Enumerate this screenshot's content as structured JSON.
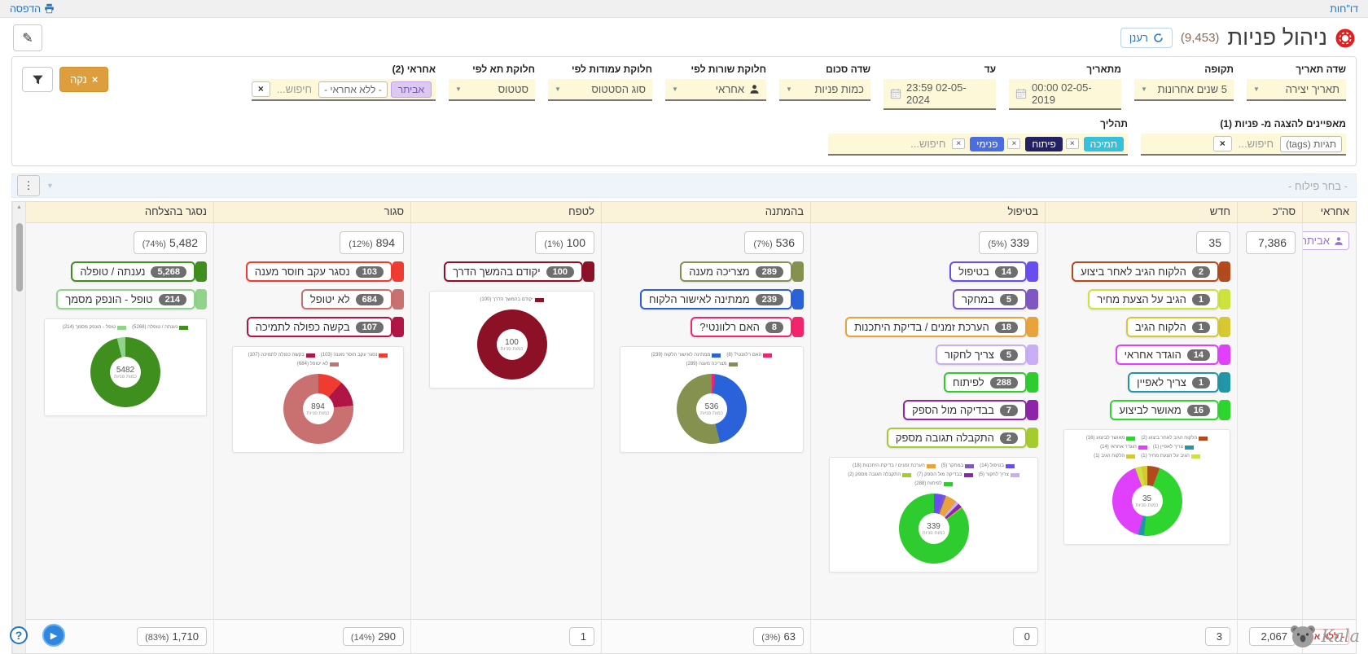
{
  "topbar": {
    "reports": "דו\"חות",
    "print": "הדפסה"
  },
  "header": {
    "title": "ניהול פניות",
    "count": "(9,453)",
    "refresh": "רענן"
  },
  "icons": {
    "caret": "▼",
    "kebab": "⋮",
    "scroll_up": "▲",
    "close": "×",
    "help": "?",
    "play": "▶"
  },
  "filters": {
    "clear": "נקה",
    "row1": [
      {
        "label": "שדה תאריך",
        "value": "תאריך יצירה"
      },
      {
        "label": "תקופה",
        "value": "5 שנים אחרונות"
      },
      {
        "label": "מתאריך",
        "value": "00:00 02-05-2019"
      },
      {
        "label": "עד",
        "value": "23:59 02-05-2024"
      },
      {
        "label": "שדה סכום",
        "value": "כמות פניות"
      },
      {
        "label": "חלוקת שורות לפי",
        "value": "אחראי"
      },
      {
        "label": "חלוקת עמודות לפי",
        "value": "סוג הסטטוס"
      },
      {
        "label": "חלוקת תא לפי",
        "value": "סטטוס"
      }
    ],
    "assignee2": {
      "label": "אחראי (2)",
      "tag_purple": "אביתר",
      "tag_plain": "- ללא אחראי -",
      "placeholder": "חיפוש..."
    },
    "attributes": {
      "label": "מאפיינים להצגה מ- פניות (1)",
      "tag": "תגיות (tags)",
      "placeholder": "חיפוש..."
    },
    "process": {
      "label": "תהליך",
      "placeholder": "חיפוש...",
      "tags": [
        {
          "text": "תמיכה",
          "color": "#35c0dc"
        },
        {
          "text": "פיתוח",
          "color": "#232064"
        },
        {
          "text": "פנימי",
          "color": "#4a6ee0"
        }
      ]
    }
  },
  "pivot": {
    "placeholder": "- בחר פילוח -"
  },
  "table": {
    "headers": {
      "assignee": "אחראי",
      "total": "סה\"כ",
      "new": "חדש",
      "in_progress": "בטיפול",
      "waiting": "בהמתנה",
      "nurture": "לטפח",
      "closed": "סגור",
      "success": "נסגר בהצלחה"
    },
    "row1": {
      "assignee": "אביתר",
      "totals": {
        "total": {
          "value": "7,386",
          "pct": ""
        },
        "new": {
          "value": "35",
          "pct": ""
        },
        "in_progress": {
          "value": "339",
          "pct": "(5%)"
        },
        "waiting": {
          "value": "536",
          "pct": "(7%)"
        },
        "nurture": {
          "value": "100",
          "pct": "(1%)"
        },
        "closed": {
          "value": "894",
          "pct": "(12%)"
        },
        "success": {
          "value": "5,482",
          "pct": "(74%)"
        }
      },
      "badges": {
        "new": [
          {
            "label": "הלקוח הגיב לאחר ביצוע",
            "count": "2",
            "color": "#b34a1e"
          },
          {
            "label": "הגיב על הצעת מחיר",
            "count": "1",
            "color": "#cde23c"
          },
          {
            "label": "הלקוח הגיב",
            "count": "1",
            "color": "#d6c832"
          },
          {
            "label": "הוגדר אחראי",
            "count": "14",
            "color": "#e040fb"
          },
          {
            "label": "צריך לאפיין",
            "count": "1",
            "color": "#2196a8"
          },
          {
            "label": "מאושר לביצוע",
            "count": "16",
            "color": "#2ed52e"
          }
        ],
        "in_progress": [
          {
            "label": "בטיפול",
            "count": "14",
            "color": "#6a4df0"
          },
          {
            "label": "במחקר",
            "count": "5",
            "color": "#7e57c2"
          },
          {
            "label": "הערכת זמנים / בדיקת היתכנות",
            "count": "18",
            "color": "#e8a33d"
          },
          {
            "label": "צריך לחקור",
            "count": "5",
            "color": "#c9aef5"
          },
          {
            "label": "לפיתוח",
            "count": "288",
            "color": "#2ecc2e"
          },
          {
            "label": "בבדיקה מול הספק",
            "count": "7",
            "color": "#8e24aa"
          },
          {
            "label": "התקבלה תגובה מספק",
            "count": "2",
            "color": "#a4cc2e"
          }
        ],
        "waiting": [
          {
            "label": "מצריכה מענה",
            "count": "289",
            "color": "#85914f"
          },
          {
            "label": "ממתינה לאישור הלקוח",
            "count": "239",
            "color": "#2962d9"
          },
          {
            "label": "האם רלוונטי?",
            "count": "8",
            "color": "#f2246e"
          }
        ],
        "nurture": [
          {
            "label": "יקודם בהמשך הדרך",
            "count": "100",
            "color": "#8c1127"
          }
        ],
        "closed": [
          {
            "label": "נסגר עקב חוסר מענה",
            "count": "103",
            "color": "#f03c30"
          },
          {
            "label": "לא יטופל",
            "count": "684",
            "color": "#c97070"
          },
          {
            "label": "בקשה כפולה לתמיכה",
            "count": "107",
            "color": "#b01545"
          }
        ],
        "success": [
          {
            "label": "נענתה / טופלה",
            "count": "5,268",
            "color": "#3f8f1f"
          },
          {
            "label": "טופל - הונפק מסמך",
            "count": "214",
            "color": "#8fd48a"
          }
        ]
      }
    },
    "totals_row": {
      "assignee": "- ללא אחראי -",
      "total": {
        "value": "2,067",
        "pct": ""
      },
      "new": {
        "value": "3",
        "pct": ""
      },
      "in_progress": {
        "value": "0",
        "pct": ""
      },
      "waiting": {
        "value": "63",
        "pct": "(3%)"
      },
      "nurture": {
        "value": "1",
        "pct": ""
      },
      "closed": {
        "value": "290",
        "pct": "(14%)"
      },
      "success": {
        "value": "1,710",
        "pct": "(83%)"
      }
    }
  },
  "chart_data": [
    {
      "type": "pie",
      "column": "נסגר בהצלחה",
      "center": "5482",
      "center_sub": "כמות פניות",
      "slices": [
        {
          "label": "נענתה / טופלה",
          "value": 5268,
          "color": "#3f8f1f"
        },
        {
          "label": "טופל - הונפק מסמך",
          "value": 214,
          "color": "#8fd48a"
        }
      ]
    },
    {
      "type": "pie",
      "column": "סגור",
      "center": "894",
      "center_sub": "כמות פניות",
      "slices": [
        {
          "label": "נסגר עקב חוסר מענה",
          "value": 103,
          "color": "#f03c30"
        },
        {
          "label": "בקשה כפולה לתמיכה",
          "value": 107,
          "color": "#b01545"
        },
        {
          "label": "לא יטופל",
          "value": 684,
          "color": "#c97070"
        }
      ]
    },
    {
      "type": "pie",
      "column": "לטפח",
      "center": "100",
      "center_sub": "כמות פניות",
      "slices": [
        {
          "label": "יקודם בהמשך הדרך",
          "value": 100,
          "color": "#8c1127"
        }
      ]
    },
    {
      "type": "pie",
      "column": "בהמתנה",
      "center": "536",
      "center_sub": "כמות פניות",
      "slices": [
        {
          "label": "האם רלוונטי?",
          "value": 8,
          "color": "#f2246e"
        },
        {
          "label": "ממתינה לאישור הלקוח",
          "value": 239,
          "color": "#2962d9"
        },
        {
          "label": "מצריכה מענה",
          "value": 289,
          "color": "#85914f"
        }
      ]
    },
    {
      "type": "pie",
      "column": "בטיפול",
      "center": "339",
      "center_sub": "כמות פניות",
      "slices": [
        {
          "label": "בטיפול",
          "value": 14,
          "color": "#6a4df0"
        },
        {
          "label": "במחקר",
          "value": 5,
          "color": "#7e57c2"
        },
        {
          "label": "הערכת זמנים / בדיקת היתכנות",
          "value": 18,
          "color": "#e8a33d"
        },
        {
          "label": "צריך לחקור",
          "value": 5,
          "color": "#c9aef5"
        },
        {
          "label": "בבדיקה מול הספק",
          "value": 7,
          "color": "#8e24aa"
        },
        {
          "label": "התקבלה תגובה מספק",
          "value": 2,
          "color": "#a4cc2e"
        },
        {
          "label": "לפיתוח",
          "value": 288,
          "color": "#2ecc2e"
        }
      ]
    },
    {
      "type": "pie",
      "column": "חדש",
      "center": "35",
      "center_sub": "כמות פניות",
      "slices": [
        {
          "label": "הלקוח הגיב לאחר ביצוע",
          "value": 2,
          "color": "#b34a1e"
        },
        {
          "label": "מאושר לביצוע",
          "value": 16,
          "color": "#2ed52e"
        },
        {
          "label": "צריך לאפיין",
          "value": 1,
          "color": "#2196a8"
        },
        {
          "label": "הוגדר אחראי",
          "value": 14,
          "color": "#e040fb"
        },
        {
          "label": "הגיב על הצעת מחיר",
          "value": 1,
          "color": "#cde23c"
        },
        {
          "label": "הלקוח הגיב",
          "value": 1,
          "color": "#d6c832"
        }
      ]
    }
  ],
  "footer": {
    "brand": "Kala"
  }
}
